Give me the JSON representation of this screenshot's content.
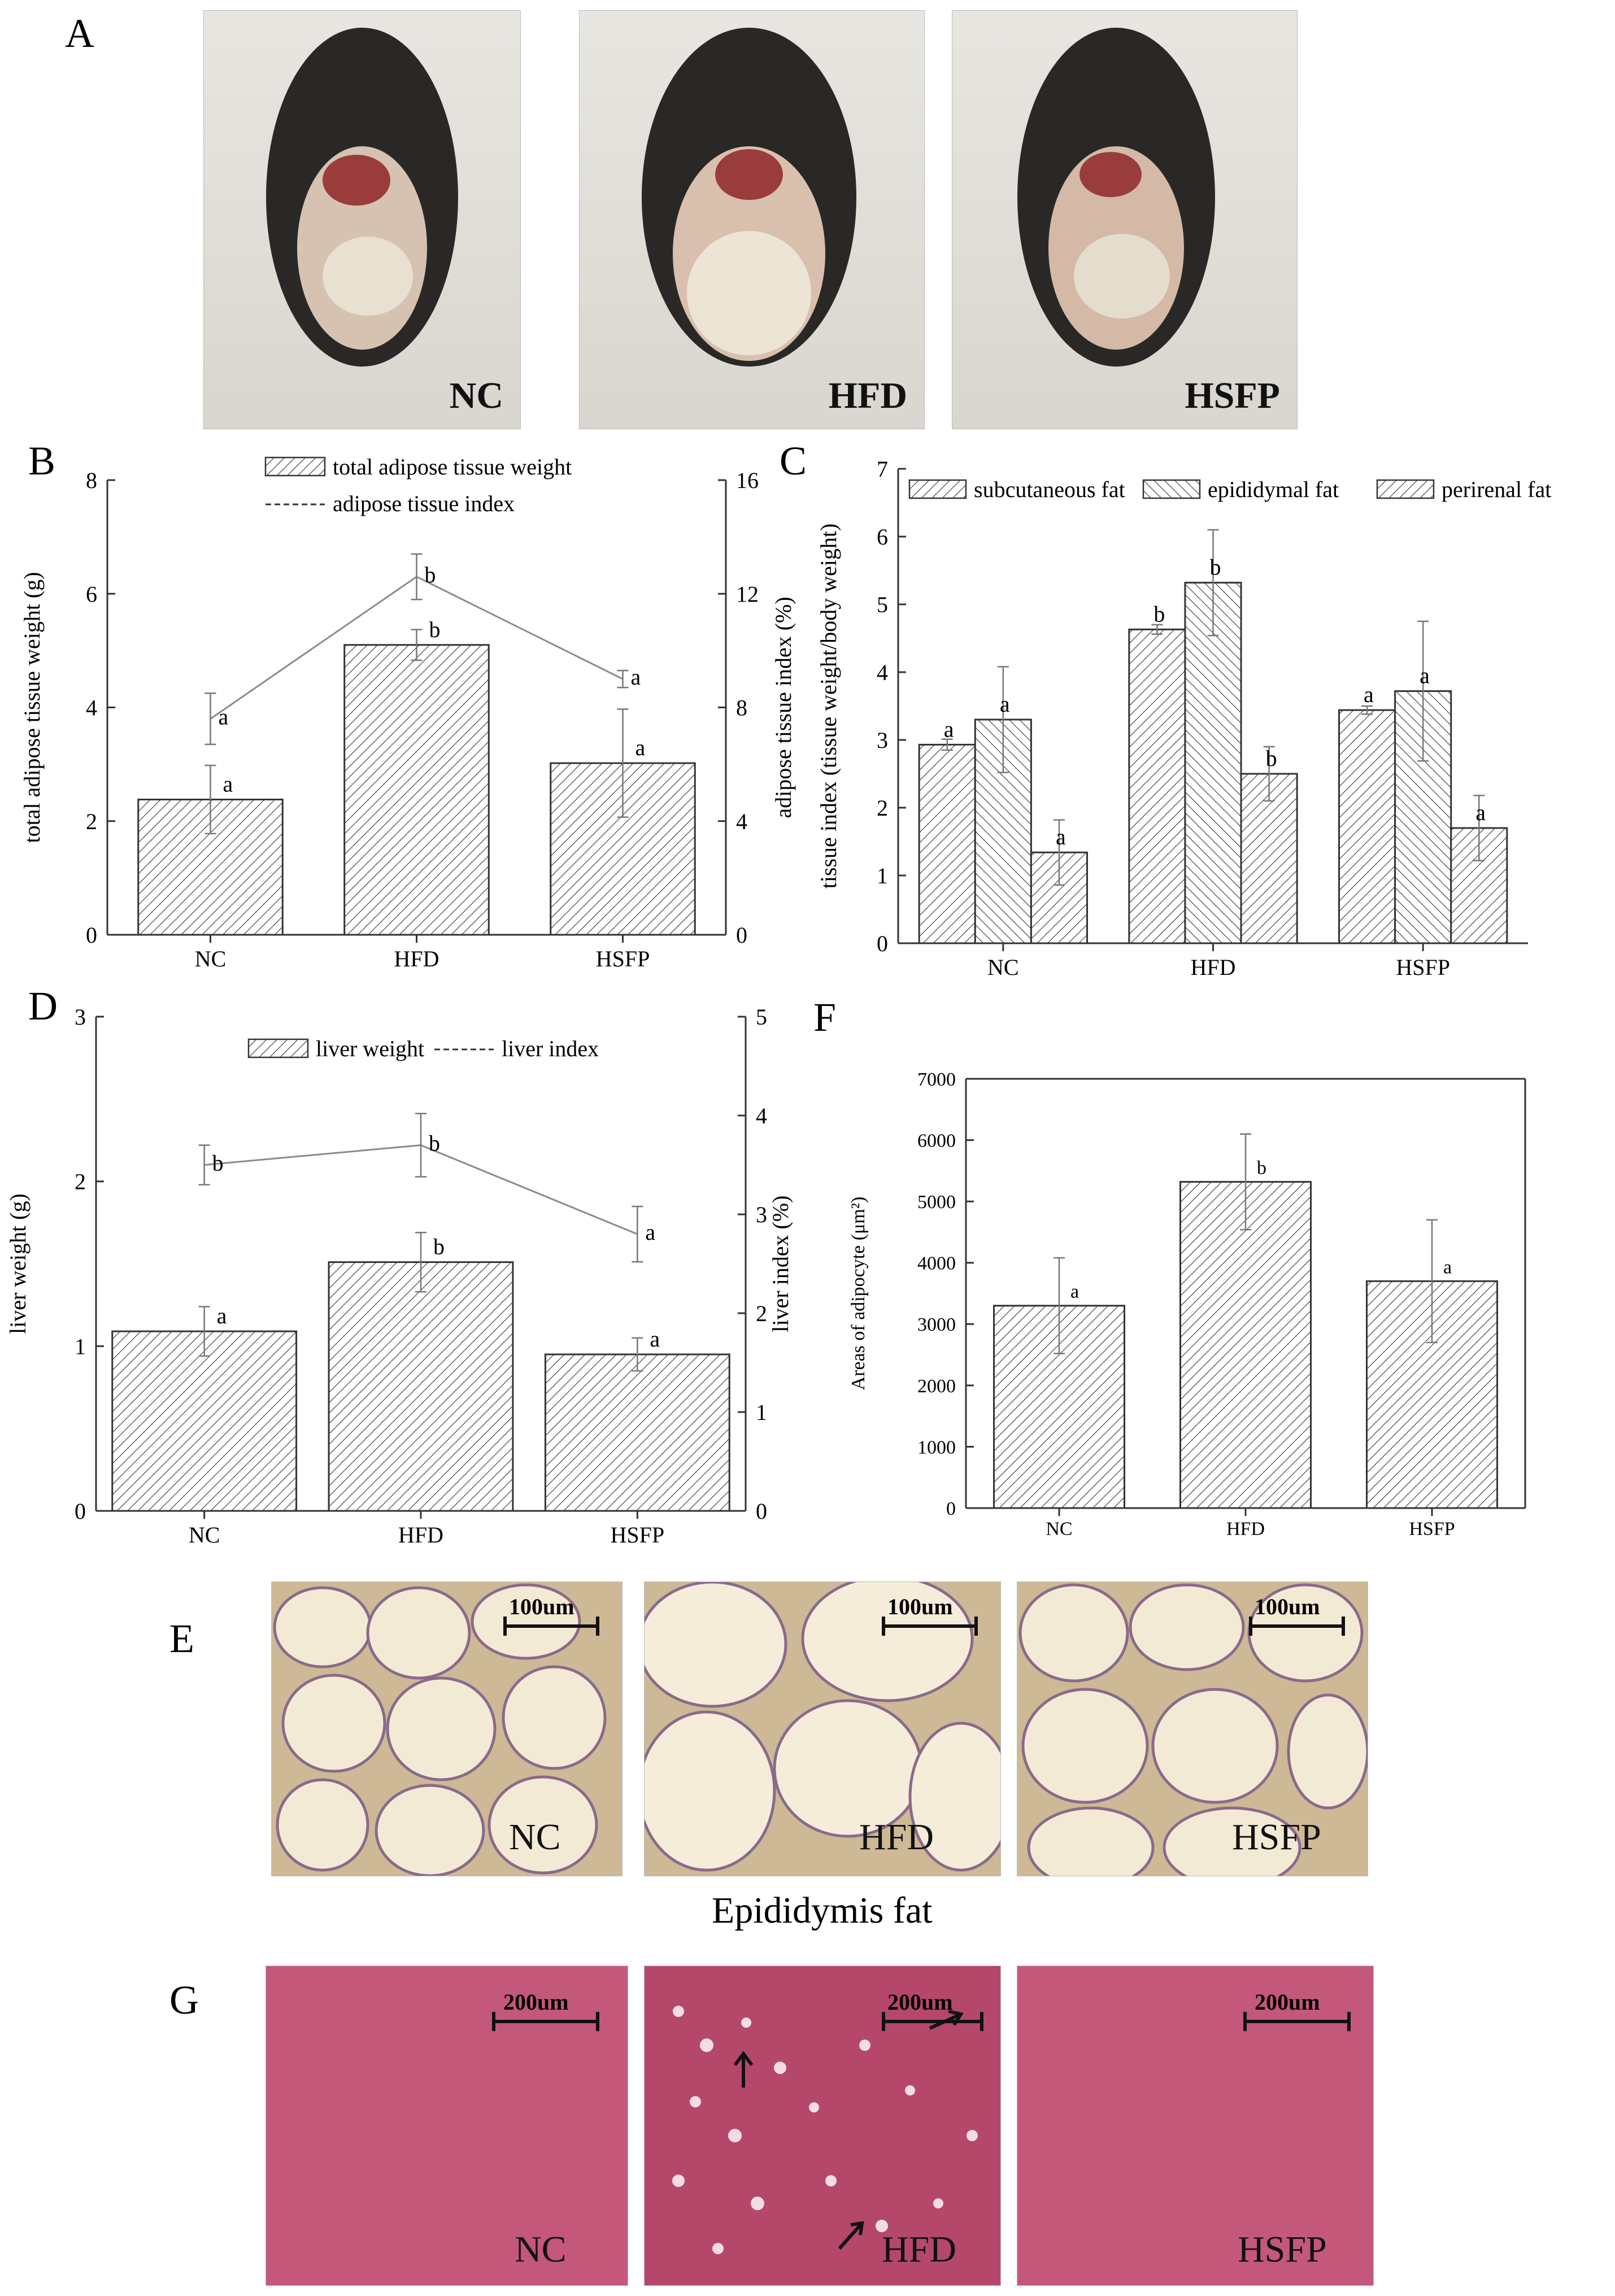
{
  "panels": {
    "A": {
      "label": "A",
      "groups": [
        "NC",
        "HFD",
        "HSFP"
      ]
    },
    "B": {
      "label": "B"
    },
    "C": {
      "label": "C"
    },
    "D": {
      "label": "D"
    },
    "E": {
      "label": "E",
      "groups": [
        "NC",
        "HFD",
        "HSFP"
      ],
      "scale": "100um",
      "caption": "Epididymis fat"
    },
    "F": {
      "label": "F"
    },
    "G": {
      "label": "G",
      "groups": [
        "NC",
        "HFD",
        "HSFP"
      ],
      "scale": "200um"
    }
  },
  "colors": {
    "ink": "#333333",
    "bar_fill": "#ffffff",
    "line": "#8a8a8a"
  },
  "chart_data": [
    {
      "id": "B",
      "type": "bar",
      "categories": [
        "NC",
        "HFD",
        "HSFP"
      ],
      "series": [
        {
          "name": "total adipose tissue weight",
          "axis": "left",
          "values": [
            2.38,
            5.1,
            3.02
          ],
          "errors": [
            0.6,
            0.27,
            0.95
          ],
          "labels": [
            "a",
            "b",
            "a"
          ]
        },
        {
          "name": "adipose tissue index",
          "type": "line",
          "axis": "right",
          "values": [
            7.6,
            12.6,
            9.0
          ],
          "errors": [
            0.9,
            0.8,
            0.3
          ],
          "labels": [
            "a",
            "b",
            "a"
          ]
        }
      ],
      "ylabel": "total adipose tissue weight (g)",
      "ylim": [
        0,
        8
      ],
      "yticks": [
        0,
        2,
        4,
        6,
        8
      ],
      "y2label": "adipose tissue index (%)",
      "y2lim": [
        0,
        16
      ],
      "y2ticks": [
        0,
        4,
        8,
        12,
        16
      ],
      "legend": [
        "total adipose tissue weight",
        "adipose tissue index"
      ],
      "legend_pos": "top-center"
    },
    {
      "id": "C",
      "type": "bar",
      "categories": [
        "NC",
        "HFD",
        "HSFP"
      ],
      "series": [
        {
          "name": "subcutaneous fat",
          "values": [
            2.93,
            4.63,
            3.44
          ],
          "errors": [
            0.08,
            0.07,
            0.06
          ],
          "labels": [
            "a",
            "b",
            "a"
          ]
        },
        {
          "name": "epididymal fat",
          "values": [
            3.3,
            5.32,
            3.72
          ],
          "errors": [
            0.78,
            0.78,
            1.03
          ],
          "labels": [
            "a",
            "b",
            "a"
          ]
        },
        {
          "name": "perirenal fat",
          "values": [
            1.34,
            2.5,
            1.7
          ],
          "errors": [
            0.48,
            0.4,
            0.48
          ],
          "labels": [
            "a",
            "b",
            "a"
          ]
        }
      ],
      "ylabel": "tissue index (tissue weight/body weight)",
      "ylim": [
        0,
        7
      ],
      "yticks": [
        0,
        1,
        2,
        3,
        4,
        5,
        6,
        7
      ],
      "legend": [
        "subcutaneous fat",
        "epididymal fat",
        "perirenal fat"
      ],
      "legend_pos": "top"
    },
    {
      "id": "D",
      "type": "bar",
      "categories": [
        "NC",
        "HFD",
        "HSFP"
      ],
      "series": [
        {
          "name": "liver weight",
          "axis": "left",
          "values": [
            1.09,
            1.51,
            0.95
          ],
          "errors": [
            0.15,
            0.18,
            0.1
          ],
          "labels": [
            "a",
            "b",
            "a"
          ]
        },
        {
          "name": "liver index",
          "type": "line",
          "axis": "right",
          "values": [
            3.5,
            3.7,
            2.8
          ],
          "errors": [
            0.2,
            0.32,
            0.28
          ],
          "labels": [
            "b",
            "b",
            "a"
          ]
        }
      ],
      "ylabel": "liver weight (g)",
      "ylim": [
        0,
        3
      ],
      "yticks": [
        0,
        1,
        2,
        3
      ],
      "y2label": "liver index (%)",
      "y2lim": [
        0,
        5
      ],
      "y2ticks": [
        0,
        1,
        2,
        3,
        4,
        5
      ],
      "legend": [
        "liver weight",
        "liver index"
      ],
      "legend_pos": "top-center"
    },
    {
      "id": "F",
      "type": "bar",
      "categories": [
        "NC",
        "HFD",
        "HSFP"
      ],
      "series": [
        {
          "name": "Areas of adipocyte",
          "values": [
            3300,
            5320,
            3700
          ],
          "errors": [
            780,
            780,
            1000
          ],
          "labels": [
            "a",
            "b",
            "a"
          ]
        }
      ],
      "ylabel": "Areas of adipocyte (μm²)",
      "ylim": [
        0,
        7000
      ],
      "yticks": [
        0,
        1000,
        2000,
        3000,
        4000,
        5000,
        6000,
        7000
      ]
    }
  ]
}
